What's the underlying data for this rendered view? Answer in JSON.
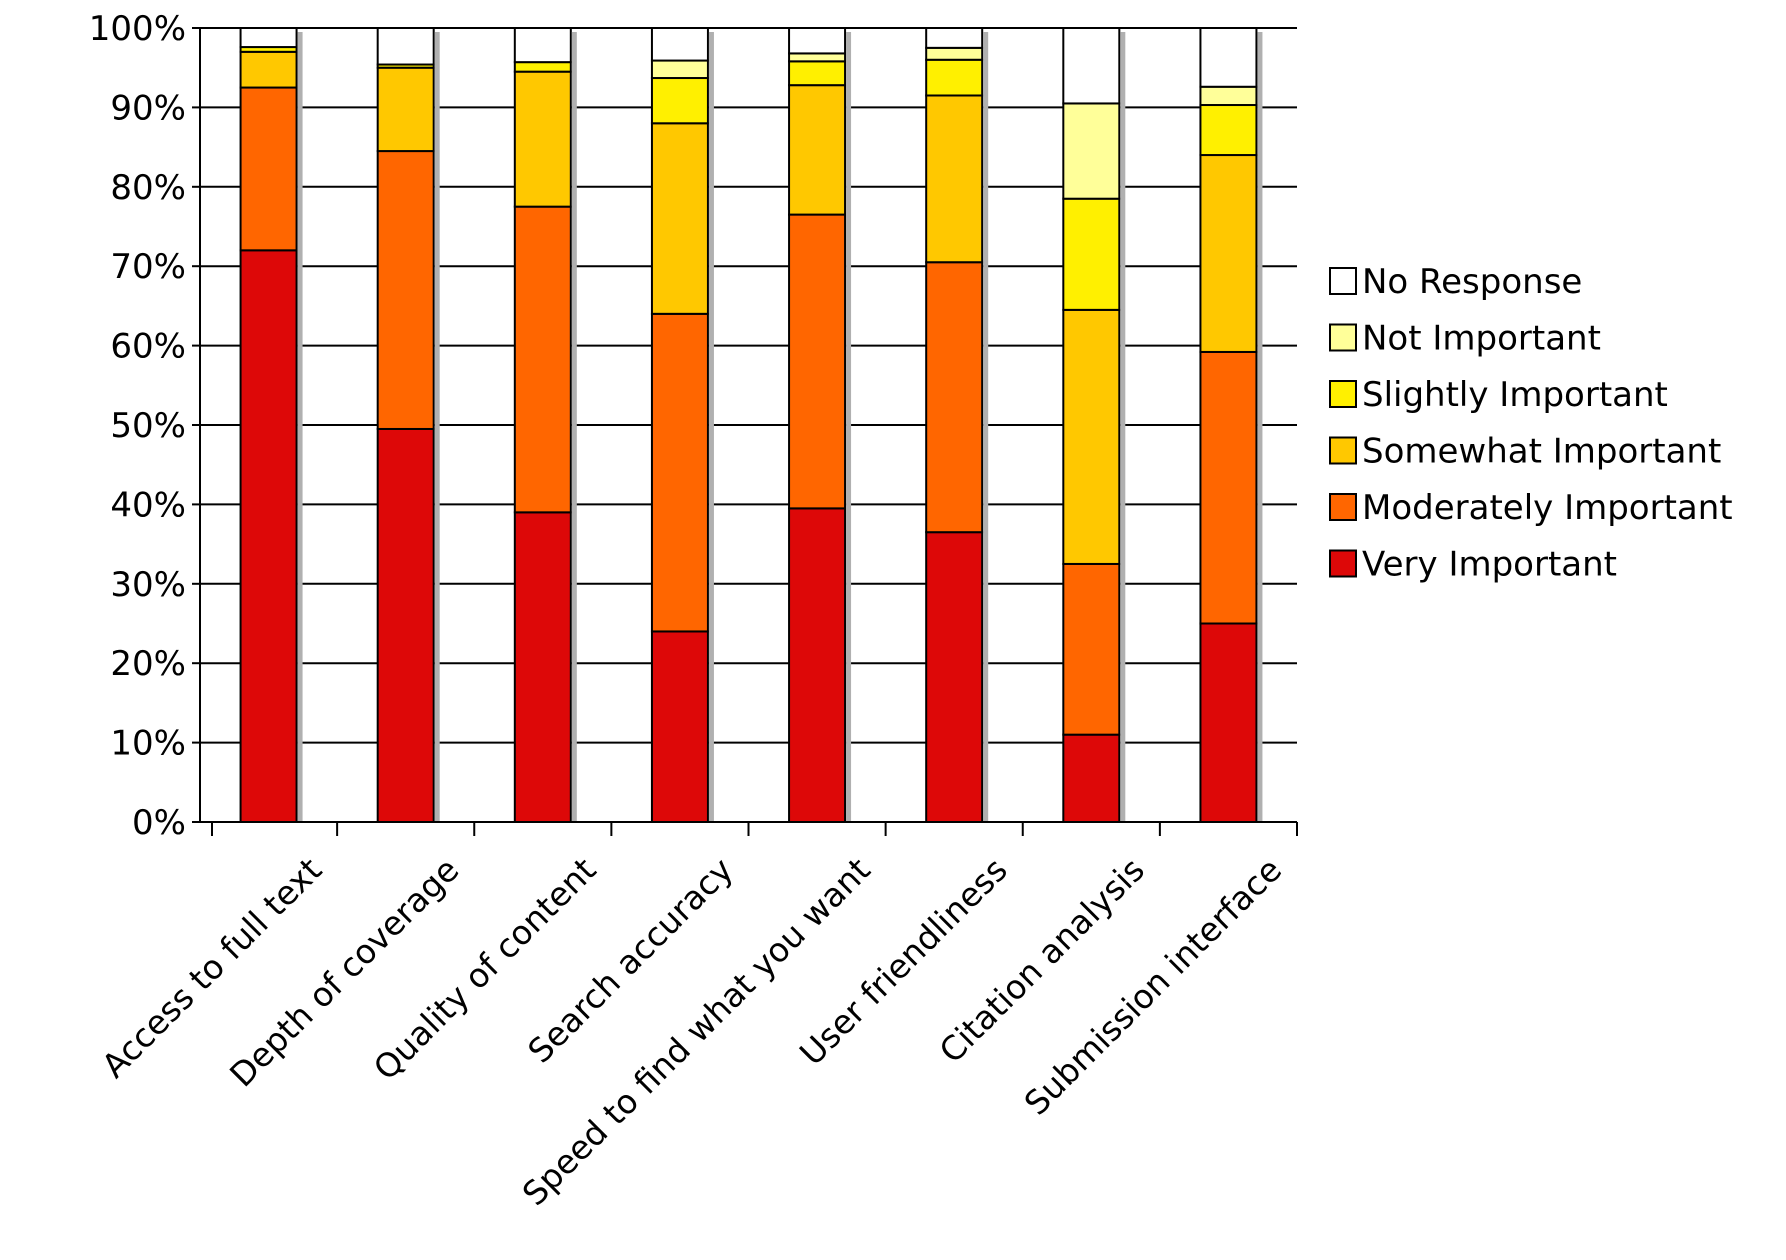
{
  "chart_data": {
    "type": "bar",
    "stacked": true,
    "percent_stacked": true,
    "categories": [
      "Access to full text",
      "Depth of coverage",
      "Quality of content",
      "Search accuracy",
      "Speed to find what you want",
      "User friendliness",
      "Citation analysis",
      "Submission interface"
    ],
    "series": [
      {
        "name": "Very Important",
        "color": "#dd0808",
        "values": [
          72,
          49.5,
          39,
          24,
          39.5,
          36.5,
          11,
          25
        ]
      },
      {
        "name": "Moderately Important",
        "color": "#ff6600",
        "values": [
          20.5,
          35,
          38.5,
          40,
          37,
          34,
          21.5,
          34.2
        ]
      },
      {
        "name": "Somewhat Important",
        "color": "#ffc800",
        "values": [
          4.5,
          10.5,
          17,
          24,
          16.3,
          21,
          32,
          24.8
        ]
      },
      {
        "name": "Slightly Important",
        "color": "#fff000",
        "values": [
          0.6,
          0.4,
          1.2,
          5.7,
          3,
          4.5,
          14,
          6.3
        ]
      },
      {
        "name": "Not Important",
        "color": "#ffff99",
        "values": [
          0,
          0,
          0,
          2.2,
          1,
          1.5,
          12,
          2.3
        ]
      },
      {
        "name": "No Response",
        "color": "#ffffff",
        "values": [
          2.4,
          4.6,
          4.3,
          4.1,
          3.2,
          2.5,
          9.5,
          7.4
        ]
      }
    ],
    "y_ticks": [
      "0%",
      "10%",
      "20%",
      "30%",
      "40%",
      "50%",
      "60%",
      "70%",
      "80%",
      "90%",
      "100%"
    ],
    "ylim": [
      0,
      100
    ],
    "grid": true,
    "legend_position": "right",
    "legend_order": [
      "No Response",
      "Not Important",
      "Slightly Important",
      "Somewhat Important",
      "Moderately Important",
      "Very Important"
    ],
    "title": "",
    "xlabel": "",
    "ylabel": ""
  }
}
